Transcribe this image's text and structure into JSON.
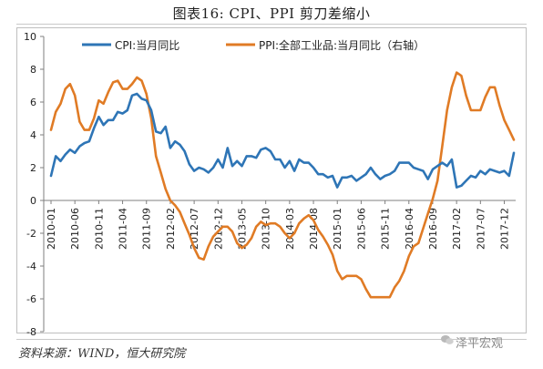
{
  "header": {
    "title": "图表16:      CPI、PPI 剪刀差缩小"
  },
  "footer": {
    "source": "资料来源：WIND，恒大研究院",
    "watermark": "泽平宏观"
  },
  "chart_data": {
    "type": "line",
    "title": "图表16:      CPI、PPI 剪刀差缩小",
    "xlabel": "",
    "ylabel": "",
    "ylim": [
      -8,
      10
    ],
    "yticks": [
      -8,
      -6,
      -4,
      -2,
      0,
      2,
      4,
      6,
      8,
      10
    ],
    "xtick_labels": [
      "2010-01",
      "2010-06",
      "2010-11",
      "2011-04",
      "2011-09",
      "2012-02",
      "2012-07",
      "2012-12",
      "2013-05",
      "2013-10",
      "2014-03",
      "2014-08",
      "2015-01",
      "2015-06",
      "2015-11",
      "2016-04",
      "2016-09",
      "2017-02",
      "2017-07",
      "2017-12"
    ],
    "x_start": "2010-01",
    "x_end": "2018-02",
    "grid": false,
    "legend_position": "top",
    "legend_note_right_axis": "（右轴）",
    "series": [
      {
        "name": "CPI:当月同比",
        "color": "#2e75b6",
        "values": [
          1.5,
          2.7,
          2.4,
          2.8,
          3.1,
          2.9,
          3.3,
          3.5,
          3.6,
          4.4,
          5.1,
          4.6,
          4.9,
          4.9,
          5.4,
          5.3,
          5.5,
          6.4,
          6.5,
          6.2,
          6.1,
          5.5,
          4.2,
          4.1,
          4.5,
          3.2,
          3.6,
          3.4,
          3.0,
          2.2,
          1.8,
          2.0,
          1.9,
          1.7,
          2.0,
          2.5,
          2.0,
          3.2,
          2.1,
          2.4,
          2.1,
          2.7,
          2.7,
          2.6,
          3.1,
          3.2,
          3.0,
          2.5,
          2.5,
          2.0,
          2.4,
          1.8,
          2.5,
          2.3,
          2.3,
          2.0,
          1.6,
          1.6,
          1.4,
          1.5,
          0.8,
          1.4,
          1.4,
          1.5,
          1.2,
          1.4,
          1.6,
          2.0,
          1.6,
          1.3,
          1.5,
          1.6,
          1.8,
          2.3,
          2.3,
          2.3,
          2.0,
          1.9,
          1.8,
          1.3,
          1.9,
          2.1,
          2.3,
          2.1,
          2.5,
          0.8,
          0.9,
          1.2,
          1.5,
          1.4,
          1.8,
          1.6,
          1.9,
          1.8,
          1.7,
          1.8,
          1.5,
          2.9
        ]
      },
      {
        "name": "PPI:全部工业品:当月同比",
        "color": "#e07b25",
        "values": [
          4.3,
          5.4,
          5.9,
          6.8,
          7.1,
          6.4,
          4.8,
          4.3,
          4.3,
          5.0,
          6.1,
          5.9,
          6.6,
          7.2,
          7.3,
          6.8,
          6.8,
          7.1,
          7.5,
          7.3,
          6.5,
          5.0,
          2.7,
          1.7,
          0.7,
          0.0,
          -0.3,
          -0.7,
          -1.4,
          -2.1,
          -2.9,
          -3.5,
          -3.6,
          -2.8,
          -2.2,
          -1.9,
          -1.6,
          -1.6,
          -1.9,
          -2.6,
          -2.9,
          -2.7,
          -2.3,
          -1.6,
          -1.3,
          -1.5,
          -1.4,
          -1.4,
          -1.6,
          -2.0,
          -2.3,
          -2.0,
          -1.4,
          -1.1,
          -0.9,
          -1.2,
          -1.8,
          -2.2,
          -2.7,
          -3.3,
          -4.3,
          -4.8,
          -4.6,
          -4.6,
          -4.6,
          -4.8,
          -5.4,
          -5.9,
          -5.9,
          -5.9,
          -5.9,
          -5.9,
          -5.3,
          -4.9,
          -4.3,
          -3.4,
          -2.8,
          -2.6,
          -1.7,
          -0.8,
          0.1,
          1.2,
          3.3,
          5.5,
          6.9,
          7.8,
          7.6,
          6.4,
          5.5,
          5.5,
          5.5,
          6.3,
          6.9,
          6.9,
          5.8,
          4.9,
          4.3,
          3.7
        ]
      }
    ]
  }
}
